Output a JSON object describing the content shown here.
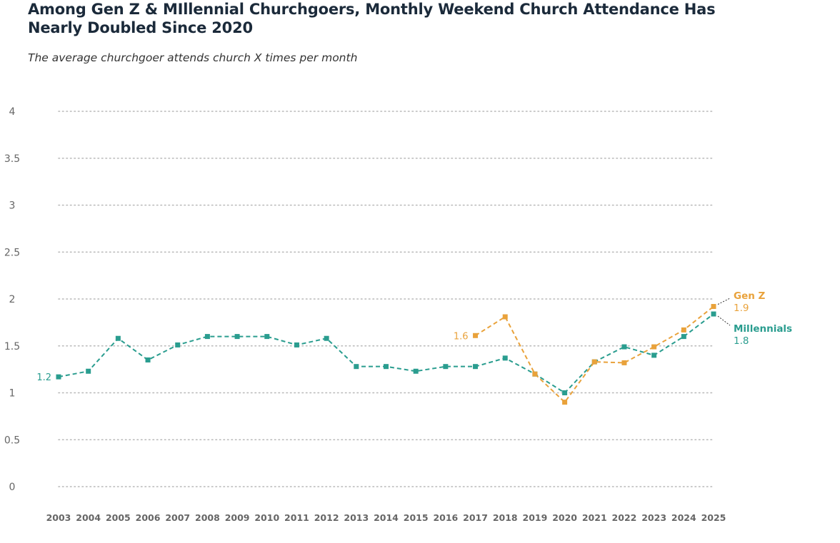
{
  "title": "Among Gen Z & MIllennial Churchgoers, Monthly Weekend Church Attendance Has Nearly Doubled Since 2020",
  "subtitle": "The average churchgoer attends church X times per month",
  "colors": {
    "millennials": "#2a9d8f",
    "genz": "#e9a23b",
    "grid": "#b8b8b8",
    "axis_text": "#666666"
  },
  "chart_data": {
    "type": "line",
    "title": "Among Gen Z & MIllennial Churchgoers, Monthly Weekend Church Attendance Has Nearly Doubled Since 2020",
    "subtitle": "The average churchgoer attends church X times per month",
    "xlabel": "",
    "ylabel": "",
    "ylim": [
      0,
      4
    ],
    "yticks": [
      "0",
      "0.5",
      "1",
      "1.5",
      "2",
      "2.5",
      "3",
      "3.5",
      "4"
    ],
    "categories": [
      "2003",
      "2004",
      "2005",
      "2006",
      "2007",
      "2008",
      "2009",
      "2010",
      "2011",
      "2012",
      "2013",
      "2014",
      "2015",
      "2016",
      "2017",
      "2018",
      "2019",
      "2020",
      "2021",
      "2022",
      "2023",
      "2024",
      "2025"
    ],
    "grid": true,
    "series": [
      {
        "name": "Millennials",
        "end_label": "1.8",
        "start_label": "1.2",
        "values": [
          1.17,
          1.23,
          1.58,
          1.35,
          1.51,
          1.6,
          1.6,
          1.6,
          1.51,
          1.58,
          1.28,
          1.28,
          1.23,
          1.28,
          1.28,
          1.37,
          1.2,
          1.0,
          1.33,
          1.49,
          1.4,
          1.6,
          1.84
        ]
      },
      {
        "name": "Gen Z",
        "end_label": "1.9",
        "start_label": "1.6",
        "values": [
          null,
          null,
          null,
          null,
          null,
          null,
          null,
          null,
          null,
          null,
          null,
          null,
          null,
          null,
          1.61,
          1.81,
          1.2,
          0.9,
          1.33,
          1.32,
          1.49,
          1.67,
          1.92
        ]
      }
    ]
  }
}
